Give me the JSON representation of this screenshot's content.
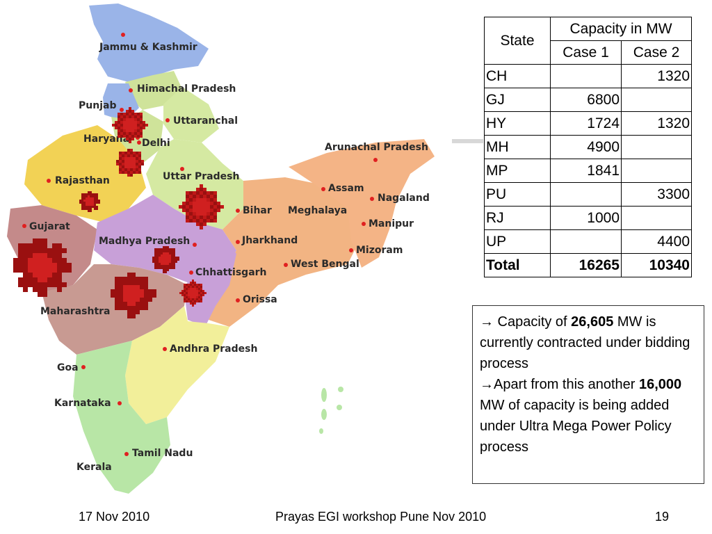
{
  "map": {
    "states": [
      {
        "id": "jk",
        "label": "Jammu & Kashmir"
      },
      {
        "id": "hp",
        "label": "Himachal Pradesh"
      },
      {
        "id": "pb",
        "label": "Punjab"
      },
      {
        "id": "ua",
        "label": "Uttaranchal"
      },
      {
        "id": "hr",
        "label": "Haryana"
      },
      {
        "id": "dl",
        "label": "Delhi"
      },
      {
        "id": "rj",
        "label": "Rajasthan"
      },
      {
        "id": "up",
        "label": "Uttar Pradesh"
      },
      {
        "id": "ar",
        "label": "Arunachal Pradesh"
      },
      {
        "id": "as",
        "label": "Assam"
      },
      {
        "id": "nl",
        "label": "Nagaland"
      },
      {
        "id": "br",
        "label": "Bihar"
      },
      {
        "id": "ml",
        "label": "Meghalaya"
      },
      {
        "id": "mn",
        "label": "Manipur"
      },
      {
        "id": "gj",
        "label": "Gujarat"
      },
      {
        "id": "mp",
        "label": "Madhya Pradesh"
      },
      {
        "id": "jh",
        "label": "Jharkhand"
      },
      {
        "id": "mz",
        "label": "Mizoram"
      },
      {
        "id": "wb",
        "label": "West Bengal"
      },
      {
        "id": "cg",
        "label": "Chhattisgarh"
      },
      {
        "id": "or",
        "label": "Orissa"
      },
      {
        "id": "mh",
        "label": "Maharashtra"
      },
      {
        "id": "ap",
        "label": "Andhra Pradesh"
      },
      {
        "id": "goa",
        "label": "Goa"
      },
      {
        "id": "ka",
        "label": "Karnataka"
      },
      {
        "id": "tn",
        "label": "Tamil Nadu"
      },
      {
        "id": "kl",
        "label": "Kerala"
      }
    ],
    "colors": {
      "north": "#9ab4e8",
      "hp": "#cfe39a",
      "ua": "#d5e9a2",
      "rajasthan": "#f2d255",
      "up": "#e6a263",
      "mp": "#c8a0d8",
      "gujarat": "#c48a8a",
      "east": "#f2b483",
      "ne": "#f4b486",
      "mh": "#c89a92",
      "ap": "#f2ef9a",
      "south": "#b8e6a6",
      "plant": "#b01818"
    }
  },
  "table": {
    "header_state": "State",
    "header_capacity": "Capacity in MW",
    "header_case1": "Case 1",
    "header_case2": "Case 2",
    "rows": [
      {
        "state": "CH",
        "case1": "",
        "case2": "1320"
      },
      {
        "state": "GJ",
        "case1": "6800",
        "case2": ""
      },
      {
        "state": "HY",
        "case1": "1724",
        "case2": "1320"
      },
      {
        "state": "MH",
        "case1": "4900",
        "case2": ""
      },
      {
        "state": "MP",
        "case1": "1841",
        "case2": ""
      },
      {
        "state": "PU",
        "case1": "",
        "case2": "3300"
      },
      {
        "state": "RJ",
        "case1": "1000",
        "case2": ""
      },
      {
        "state": "UP",
        "case1": "",
        "case2": "4400"
      }
    ],
    "total": {
      "state": "Total",
      "case1": "16265",
      "case2": "10340"
    }
  },
  "note": {
    "arrow_icon": "right-arrow-icon",
    "line1_pre": " Capacity of ",
    "line1_bold": "26,605",
    "line1_post": " MW is currently contracted under bidding process",
    "line2_pre": "Apart from this another ",
    "line2_bold": "16,000",
    "line2_post": " MW of capacity is being added under Ultra Mega Power Policy process"
  },
  "footer": {
    "date": "17 Nov 2010",
    "title": "Prayas EGI workshop Pune Nov 2010",
    "page": "19"
  }
}
